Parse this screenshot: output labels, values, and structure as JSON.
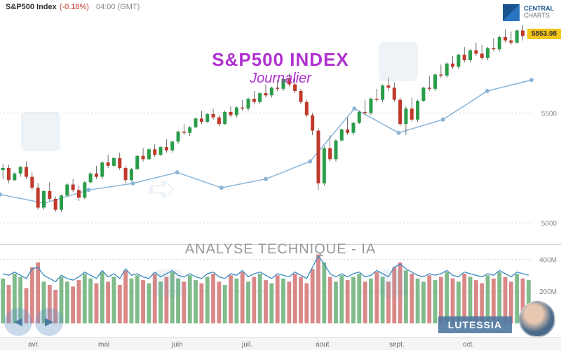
{
  "header": {
    "symbol": "S&P500 Index",
    "pct": "(-0.18%)",
    "time": "04:00 (GMT)"
  },
  "logo": {
    "l1": "CENTRAL",
    "l2": "CHARTS"
  },
  "title": {
    "t1": "S&P500 INDEX",
    "t2": "Journalier"
  },
  "analysis": "ANALYSE TECHNIQUE - IA",
  "lutessia": "LUTESSIA",
  "price_badge": "5853.98",
  "price_chart": {
    "type": "candlestick_with_line",
    "ylim": [
      4900,
      5950
    ],
    "yticks": [
      5000,
      5500
    ],
    "grid_color": "#d0d0d0",
    "up_color": "#2a9d4a",
    "down_color": "#c0392b",
    "wick_color": "#333",
    "line_color": "#8ab5d8",
    "line_width": 1.5,
    "marker_color": "#8ab5d8",
    "candles": [
      [
        5240,
        5270,
        5200,
        5250
      ],
      [
        5250,
        5265,
        5180,
        5195
      ],
      [
        5195,
        5230,
        5190,
        5225
      ],
      [
        5225,
        5260,
        5210,
        5255
      ],
      [
        5255,
        5280,
        5200,
        5210
      ],
      [
        5210,
        5230,
        5150,
        5160
      ],
      [
        5160,
        5180,
        5060,
        5070
      ],
      [
        5070,
        5150,
        5060,
        5145
      ],
      [
        5145,
        5185,
        5100,
        5110
      ],
      [
        5110,
        5120,
        5050,
        5060
      ],
      [
        5060,
        5130,
        5050,
        5125
      ],
      [
        5125,
        5180,
        5120,
        5175
      ],
      [
        5175,
        5200,
        5140,
        5150
      ],
      [
        5150,
        5170,
        5100,
        5115
      ],
      [
        5115,
        5190,
        5110,
        5185
      ],
      [
        5185,
        5230,
        5180,
        5225
      ],
      [
        5225,
        5260,
        5200,
        5210
      ],
      [
        5210,
        5280,
        5200,
        5275
      ],
      [
        5275,
        5310,
        5250,
        5260
      ],
      [
        5260,
        5300,
        5255,
        5295
      ],
      [
        5295,
        5320,
        5240,
        5250
      ],
      [
        5250,
        5260,
        5180,
        5195
      ],
      [
        5195,
        5250,
        5190,
        5245
      ],
      [
        5245,
        5310,
        5240,
        5305
      ],
      [
        5305,
        5340,
        5280,
        5290
      ],
      [
        5290,
        5340,
        5285,
        5335
      ],
      [
        5335,
        5360,
        5300,
        5310
      ],
      [
        5310,
        5350,
        5305,
        5345
      ],
      [
        5345,
        5380,
        5320,
        5330
      ],
      [
        5330,
        5375,
        5320,
        5370
      ],
      [
        5370,
        5420,
        5360,
        5415
      ],
      [
        5415,
        5450,
        5400,
        5410
      ],
      [
        5410,
        5440,
        5395,
        5435
      ],
      [
        5435,
        5480,
        5430,
        5475
      ],
      [
        5475,
        5510,
        5450,
        5460
      ],
      [
        5460,
        5500,
        5455,
        5495
      ],
      [
        5495,
        5520,
        5470,
        5480
      ],
      [
        5480,
        5490,
        5440,
        5450
      ],
      [
        5450,
        5510,
        5445,
        5505
      ],
      [
        5505,
        5530,
        5480,
        5490
      ],
      [
        5490,
        5530,
        5480,
        5525
      ],
      [
        5525,
        5560,
        5510,
        5520
      ],
      [
        5520,
        5570,
        5510,
        5565
      ],
      [
        5565,
        5600,
        5540,
        5550
      ],
      [
        5550,
        5595,
        5540,
        5590
      ],
      [
        5590,
        5630,
        5570,
        5580
      ],
      [
        5580,
        5620,
        5570,
        5615
      ],
      [
        5615,
        5650,
        5600,
        5610
      ],
      [
        5610,
        5660,
        5600,
        5655
      ],
      [
        5655,
        5680,
        5620,
        5630
      ],
      [
        5630,
        5660,
        5590,
        5600
      ],
      [
        5600,
        5610,
        5540,
        5550
      ],
      [
        5550,
        5560,
        5480,
        5490
      ],
      [
        5490,
        5500,
        5400,
        5420
      ],
      [
        5420,
        5430,
        5150,
        5180
      ],
      [
        5180,
        5350,
        5170,
        5340
      ],
      [
        5340,
        5400,
        5280,
        5290
      ],
      [
        5290,
        5380,
        5280,
        5375
      ],
      [
        5375,
        5430,
        5370,
        5425
      ],
      [
        5425,
        5480,
        5400,
        5410
      ],
      [
        5410,
        5460,
        5400,
        5455
      ],
      [
        5455,
        5510,
        5450,
        5505
      ],
      [
        5505,
        5560,
        5490,
        5500
      ],
      [
        5500,
        5570,
        5490,
        5565
      ],
      [
        5565,
        5610,
        5550,
        5560
      ],
      [
        5560,
        5630,
        5550,
        5625
      ],
      [
        5625,
        5660,
        5600,
        5615
      ],
      [
        5615,
        5640,
        5550,
        5560
      ],
      [
        5560,
        5570,
        5440,
        5450
      ],
      [
        5450,
        5530,
        5400,
        5520
      ],
      [
        5520,
        5570,
        5460,
        5470
      ],
      [
        5470,
        5560,
        5460,
        5555
      ],
      [
        5555,
        5620,
        5550,
        5615
      ],
      [
        5615,
        5670,
        5600,
        5610
      ],
      [
        5610,
        5680,
        5600,
        5675
      ],
      [
        5675,
        5720,
        5660,
        5670
      ],
      [
        5670,
        5730,
        5660,
        5725
      ],
      [
        5725,
        5760,
        5700,
        5710
      ],
      [
        5710,
        5770,
        5700,
        5765
      ],
      [
        5765,
        5800,
        5730,
        5740
      ],
      [
        5740,
        5790,
        5730,
        5785
      ],
      [
        5785,
        5820,
        5760,
        5770
      ],
      [
        5770,
        5810,
        5740,
        5750
      ],
      [
        5750,
        5800,
        5740,
        5795
      ],
      [
        5795,
        5840,
        5780,
        5790
      ],
      [
        5790,
        5850,
        5780,
        5845
      ],
      [
        5845,
        5880,
        5820,
        5830
      ],
      [
        5830,
        5870,
        5810,
        5820
      ],
      [
        5820,
        5880,
        5815,
        5875
      ],
      [
        5875,
        5900,
        5830,
        5850
      ],
      [
        5850,
        5870,
        5840,
        5854
      ]
    ],
    "line": [
      5130,
      5090,
      5150,
      5180,
      5230,
      5160,
      5200,
      5280,
      5520,
      5410,
      5470,
      5600,
      5650
    ]
  },
  "vol_chart": {
    "type": "bar_with_line",
    "ylim": [
      0,
      480000000
    ],
    "yticks": [
      200000000,
      400000000
    ],
    "ytick_labels": [
      "200M",
      "400M"
    ],
    "line_color": "#3a8ac0",
    "up_color": "#5faa6e",
    "down_color": "#d06a6a",
    "values": [
      280,
      240,
      310,
      290,
      220,
      350,
      380,
      260,
      240,
      210,
      290,
      260,
      230,
      270,
      310,
      280,
      250,
      320,
      260,
      290,
      240,
      330,
      280,
      300,
      270,
      250,
      310,
      260,
      290,
      320,
      280,
      260,
      300,
      270,
      250,
      290,
      310,
      260,
      240,
      300,
      280,
      320,
      260,
      290,
      310,
      270,
      250,
      300,
      280,
      260,
      310,
      290,
      250,
      340,
      430,
      380,
      290,
      260,
      300,
      270,
      290,
      310,
      260,
      280,
      320,
      290,
      260,
      350,
      380,
      330,
      310,
      280,
      260,
      300,
      270,
      290,
      320,
      280,
      260,
      310,
      290,
      270,
      250,
      300,
      280,
      320,
      290,
      260,
      310,
      280,
      270
    ],
    "line_values": [
      310,
      300,
      320,
      300,
      280,
      340,
      350,
      300,
      280,
      260,
      300,
      280,
      270,
      290,
      320,
      300,
      280,
      330,
      290,
      310,
      280,
      340,
      300,
      310,
      290,
      280,
      320,
      290,
      310,
      330,
      300,
      290,
      310,
      290,
      280,
      310,
      320,
      290,
      280,
      310,
      300,
      330,
      290,
      310,
      320,
      300,
      280,
      310,
      300,
      290,
      320,
      300,
      280,
      350,
      420,
      370,
      310,
      290,
      310,
      290,
      310,
      320,
      290,
      300,
      330,
      310,
      290,
      350,
      370,
      340,
      320,
      300,
      290,
      310,
      300,
      310,
      330,
      300,
      290,
      320,
      310,
      300,
      290,
      310,
      300,
      330,
      310,
      290,
      320,
      310,
      300
    ]
  },
  "xaxis": {
    "labels": [
      "avr.",
      "mai",
      "juin",
      "juil.",
      "aout",
      "sept.",
      "oct."
    ],
    "positions": [
      40,
      140,
      245,
      345,
      450,
      555,
      660
    ]
  }
}
